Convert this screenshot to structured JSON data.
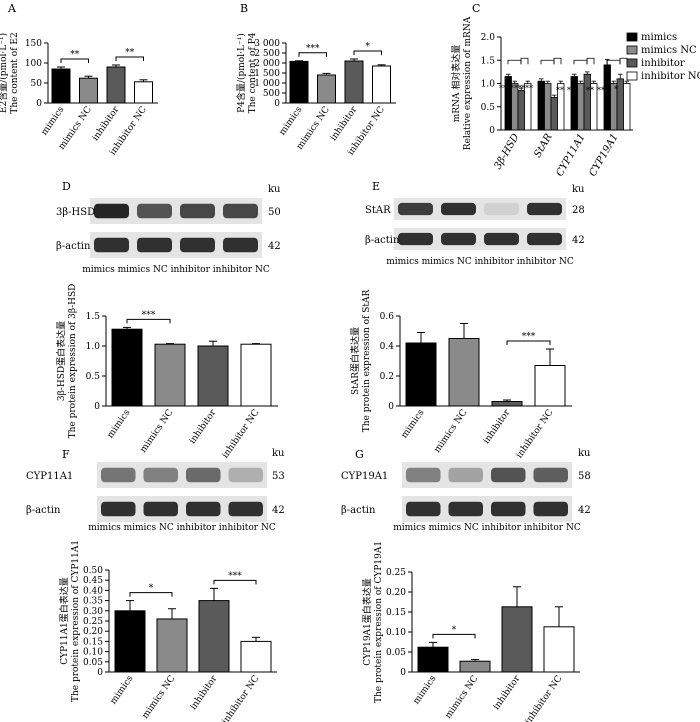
{
  "figure": {
    "colors": {
      "mimics": "#000000",
      "mimics NC": "#8a8a8a",
      "inhibitor": "#5a5a5a",
      "inhibitor NC": "#ffffff"
    },
    "legend": [
      "mimics",
      "mimics NC",
      "inhibitor",
      "inhibitor NC"
    ],
    "blots": {
      "D": {
        "label": "D",
        "bands": [
          "3β-HSD",
          "β-actin"
        ],
        "ku": "ku",
        "sizes": [
          "50",
          "42"
        ],
        "lanes": "mimics mimics NC  inhibitor inhibitor NC"
      },
      "E": {
        "label": "E",
        "bands": [
          "StAR",
          "β-actin"
        ],
        "ku": "ku",
        "sizes": [
          "28",
          "42"
        ],
        "lanes": "mimics mimics NC  inhibitor inhibitor NC"
      },
      "F": {
        "label": "F",
        "bands": [
          "CYP11A1",
          "β-actin"
        ],
        "ku": "ku",
        "sizes": [
          "53",
          "42"
        ],
        "lanes": "mimics mimics NC  inhibitor inhibitor NC"
      },
      "G": {
        "label": "G",
        "bands": [
          "CYP19A1",
          "β-actin"
        ],
        "ku": "ku",
        "sizes": [
          "58",
          "42"
        ],
        "lanes": "mimics mimics NC  inhibitor inhibitor NC"
      }
    }
  },
  "chart_data": [
    {
      "panel": "A",
      "type": "bar",
      "categories": [
        "mimics",
        "mimics NC",
        "inhibitor",
        "inhibitor NC"
      ],
      "values": [
        85,
        62,
        90,
        53
      ],
      "errors": [
        5,
        5,
        5,
        5
      ],
      "ylabel": [
        "E2含量/(pmol·L⁻¹)",
        "The content of E2"
      ],
      "ylim": [
        0,
        150
      ],
      "yticks": [
        0,
        50,
        100,
        150
      ],
      "significance": [
        {
          "from": 0,
          "to": 1,
          "label": "**"
        },
        {
          "from": 2,
          "to": 3,
          "label": "**"
        }
      ]
    },
    {
      "panel": "B",
      "type": "bar",
      "categories": [
        "mimics",
        "mimics NC",
        "inhibitor",
        "inhibitor NC"
      ],
      "values": [
        2080,
        1400,
        2100,
        1850
      ],
      "errors": [
        30,
        80,
        100,
        60
      ],
      "ylabel": [
        "P4含量/(pmol·L⁻¹)",
        "The content of P4"
      ],
      "ylim": [
        0,
        3000
      ],
      "yticks": [
        0,
        500,
        1000,
        1500,
        2000,
        2500,
        3000
      ],
      "yticklabels": [
        "0",
        "500",
        "1 000",
        "1 500",
        "2 000",
        "2 500",
        "3 000"
      ],
      "significance": [
        {
          "from": 0,
          "to": 1,
          "label": "***"
        },
        {
          "from": 2,
          "to": 3,
          "label": "*"
        }
      ]
    },
    {
      "panel": "C",
      "type": "bar",
      "categories": [
        "3β-HSD",
        "StAR",
        "CYP11A1",
        "CYP19A1"
      ],
      "series": [
        {
          "name": "mimics",
          "values": [
            1.15,
            1.05,
            1.15,
            1.4
          ],
          "errors": [
            0.05,
            0.05,
            0.05,
            0.12
          ]
        },
        {
          "name": "mimics NC",
          "values": [
            1.0,
            1.0,
            1.0,
            1.0
          ],
          "errors": [
            0.05,
            0.05,
            0.05,
            0.05
          ]
        },
        {
          "name": "inhibitor",
          "values": [
            0.85,
            0.7,
            1.2,
            1.1
          ],
          "errors": [
            0.05,
            0.05,
            0.05,
            0.1
          ]
        },
        {
          "name": "inhibitor NC",
          "values": [
            1.0,
            1.0,
            1.0,
            1.0
          ],
          "errors": [
            0.05,
            0.05,
            0.05,
            0.05
          ]
        }
      ],
      "ylabel": [
        "mRNA 相对表达量",
        "Relative expression of mRNA"
      ],
      "ylim": [
        0,
        2.0
      ],
      "yticks": [
        0,
        0.5,
        1.0,
        1.5,
        2.0
      ],
      "yticklabels": [
        "0",
        "0.5",
        "1.0",
        "1.5",
        "2.0"
      ],
      "significance": [
        {
          "label": "***"
        },
        {
          "label": "***"
        },
        {
          "label": "***"
        },
        {
          "label": "**"
        },
        {
          "label": "**"
        },
        {
          "label": "**"
        },
        {
          "label": "**"
        },
        {
          "label": "*"
        }
      ]
    },
    {
      "panel": "D",
      "type": "bar",
      "categories": [
        "mimics",
        "mimics NC",
        "inhibitor",
        "inhibitor NC"
      ],
      "values": [
        1.28,
        1.03,
        1.0,
        1.03
      ],
      "errors": [
        0.03,
        0.01,
        0.08,
        0.01
      ],
      "ylabel": [
        "3β-HSD蛋白表达量",
        "The protein expression of 3β-HSD"
      ],
      "ylim": [
        0,
        1.5
      ],
      "yticks": [
        0,
        0.5,
        1.0,
        1.5
      ],
      "yticklabels": [
        "0",
        "0.5",
        "1.0",
        "1.5"
      ],
      "significance": [
        {
          "from": 0,
          "to": 1,
          "label": "***"
        }
      ]
    },
    {
      "panel": "E",
      "type": "bar",
      "categories": [
        "mimics",
        "mimics NC",
        "inhibitor",
        "inhibitor NC"
      ],
      "values": [
        0.42,
        0.45,
        0.03,
        0.27
      ],
      "errors": [
        0.07,
        0.1,
        0.01,
        0.11
      ],
      "ylabel": [
        "StAR蛋白表达量",
        "The protein expression of StAR"
      ],
      "ylim": [
        0,
        0.6
      ],
      "yticks": [
        0,
        0.2,
        0.4,
        0.6
      ],
      "yticklabels": [
        "0",
        "0.2",
        "0.4",
        "0.6"
      ],
      "significance": [
        {
          "from": 2,
          "to": 3,
          "label": "***"
        }
      ]
    },
    {
      "panel": "F",
      "type": "bar",
      "categories": [
        "mimics",
        "mimics NC",
        "inhibitor",
        "inhibitor NC"
      ],
      "values": [
        0.3,
        0.26,
        0.35,
        0.15
      ],
      "errors": [
        0.05,
        0.05,
        0.06,
        0.02
      ],
      "ylabel": [
        "CYP11A1蛋白表达量",
        "The protein expression of CYP11A1"
      ],
      "ylim": [
        0,
        0.5
      ],
      "yticks": [
        0,
        0.05,
        0.1,
        0.15,
        0.2,
        0.25,
        0.3,
        0.35,
        0.4,
        0.45,
        0.5
      ],
      "yticklabels": [
        "0",
        "0.05",
        "0.10",
        "0.15",
        "0.20",
        "0.25",
        "0.30",
        "0.35",
        "0.40",
        "0.45",
        "0.50"
      ],
      "significance": [
        {
          "from": 0,
          "to": 1,
          "label": "*"
        },
        {
          "from": 2,
          "to": 3,
          "label": "***"
        }
      ]
    },
    {
      "panel": "G",
      "type": "bar",
      "categories": [
        "mimics",
        "mimics NC",
        "inhibitor",
        "inhibitor NC"
      ],
      "values": [
        0.062,
        0.027,
        0.163,
        0.113
      ],
      "errors": [
        0.012,
        0.004,
        0.05,
        0.05
      ],
      "ylabel": [
        "CYP19A1蛋白表达量",
        "The protein expression of CYP19A1"
      ],
      "ylim": [
        0,
        0.25
      ],
      "yticks": [
        0,
        0.05,
        0.1,
        0.15,
        0.2,
        0.25
      ],
      "yticklabels": [
        "0",
        "0.05",
        "0.10",
        "0.15",
        "0.20",
        "0.25"
      ],
      "significance": [
        {
          "from": 0,
          "to": 1,
          "label": "*"
        }
      ]
    }
  ]
}
